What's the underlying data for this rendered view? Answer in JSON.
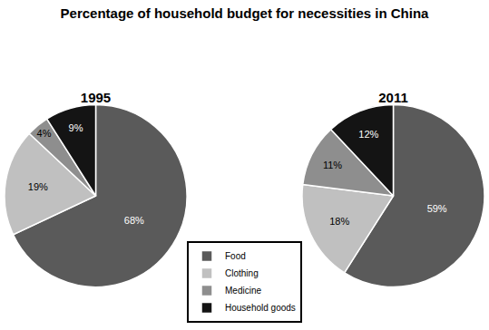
{
  "title": "Percentage of household budget for necessities in China",
  "chart_data": [
    {
      "type": "pie",
      "title": "1995",
      "categories": [
        "Food",
        "Clothing",
        "Medicine",
        "Household goods"
      ],
      "values": [
        68,
        19,
        4,
        9
      ],
      "value_labels": [
        "68%",
        "19%",
        "4%",
        "9%"
      ],
      "colors": [
        "#5a5a5a",
        "#c0c0c0",
        "#8e8e8e",
        "#141414"
      ],
      "data_labels": true,
      "legend": "bottom"
    },
    {
      "type": "pie",
      "title": "2011",
      "categories": [
        "Food",
        "Clothing",
        "Medicine",
        "Household goods"
      ],
      "values": [
        59,
        18,
        11,
        12
      ],
      "value_labels": [
        "59%",
        "18%",
        "11%",
        "12%"
      ],
      "colors": [
        "#5a5a5a",
        "#c0c0c0",
        "#8e8e8e",
        "#141414"
      ],
      "data_labels": true,
      "legend": "bottom"
    }
  ]
}
